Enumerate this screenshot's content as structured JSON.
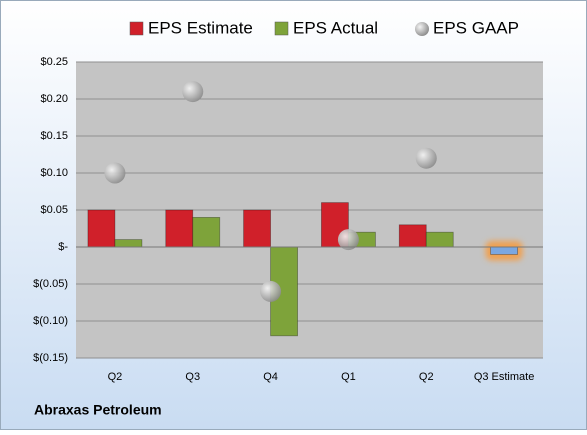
{
  "chart_data": {
    "type": "bar",
    "footer": "Abraxas Petroleum",
    "categories": [
      "Q2",
      "Q3",
      "Q4",
      "Q1",
      "Q2",
      "Q3 Estimate"
    ],
    "series": [
      {
        "name": "EPS Estimate",
        "color": "#d0202a",
        "values": [
          0.05,
          0.05,
          0.05,
          0.06,
          0.03,
          -0.01
        ],
        "point_colors": [
          "#d0202a",
          "#d0202a",
          "#d0202a",
          "#d0202a",
          "#d0202a",
          "#7ba7e0"
        ]
      },
      {
        "name": "EPS Actual",
        "color": "#7ea33a",
        "values": [
          0.01,
          0.04,
          -0.12,
          0.02,
          0.02,
          null
        ]
      },
      {
        "name": "EPS GAAP",
        "color": "#a8a8a8",
        "values": [
          0.1,
          0.21,
          -0.06,
          0.01,
          0.12,
          null
        ]
      }
    ],
    "ylim": [
      -0.15,
      0.25
    ],
    "yticks": [
      {
        "value": -0.15,
        "label": "$(0.15)"
      },
      {
        "value": -0.1,
        "label": "$(0.10)"
      },
      {
        "value": -0.05,
        "label": "$(0.05)"
      },
      {
        "value": 0,
        "label": "$-"
      },
      {
        "value": 0.05,
        "label": "$0.05"
      },
      {
        "value": 0.1,
        "label": "$0.10"
      },
      {
        "value": 0.15,
        "label": "$0.15"
      },
      {
        "value": 0.2,
        "label": "$0.20"
      },
      {
        "value": 0.25,
        "label": "$0.25"
      }
    ],
    "grid": true
  }
}
